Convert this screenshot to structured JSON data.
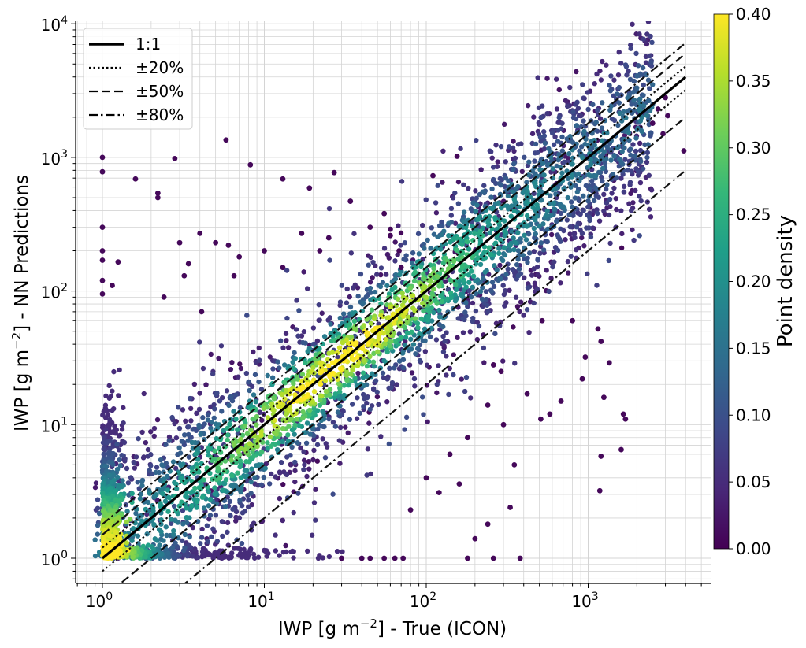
{
  "chart_data": {
    "type": "scatter",
    "title": "",
    "xlabel": "IWP [g m⁻²] - True (ICON)",
    "ylabel": "IWP [g m⁻²] - NN Predictions",
    "x_scale": "log",
    "y_scale": "log",
    "xlim": [
      0.7,
      5500
    ],
    "ylim": [
      0.7,
      11000
    ],
    "grid": true,
    "xticks": [
      {
        "value": 1,
        "base": "10",
        "exp": "0"
      },
      {
        "value": 10,
        "base": "10",
        "exp": "1"
      },
      {
        "value": 100,
        "base": "10",
        "exp": "2"
      },
      {
        "value": 1000,
        "base": "10",
        "exp": "3"
      }
    ],
    "yticks": [
      {
        "value": 1,
        "base": "10",
        "exp": "0"
      },
      {
        "value": 10,
        "base": "10",
        "exp": "1"
      },
      {
        "value": 100,
        "base": "10",
        "exp": "2"
      },
      {
        "value": 1000,
        "base": "10",
        "exp": "3"
      },
      {
        "value": 10000,
        "base": "10",
        "exp": "4"
      }
    ],
    "legend": {
      "position": "top-left",
      "entries": [
        {
          "label": "1:1",
          "style": "solid",
          "factor": 1.0
        },
        {
          "label": "±20%",
          "style": "dotted",
          "factors": [
            1.2,
            0.8
          ]
        },
        {
          "label": "±50%",
          "style": "dashed",
          "factors": [
            1.5,
            0.5
          ]
        },
        {
          "label": "±80%",
          "style": "dashdot",
          "factors": [
            1.8,
            0.2
          ]
        }
      ]
    },
    "reference_lines_x_range": [
      1,
      4000
    ],
    "colorbar": {
      "label": "Point density",
      "min": 0.0,
      "max": 0.4,
      "ticks": [
        "0.00",
        "0.05",
        "0.10",
        "0.15",
        "0.20",
        "0.25",
        "0.30",
        "0.35",
        "0.40"
      ],
      "colormap": "viridis",
      "colors": [
        "#440154",
        "#482878",
        "#3e4989",
        "#31688e",
        "#26828e",
        "#1f9e89",
        "#35b779",
        "#6ece58",
        "#b5de2b",
        "#fde725"
      ]
    },
    "outlier_points": [
      [
        1,
        1000
      ],
      [
        1,
        780
      ],
      [
        1,
        300
      ],
      [
        1,
        200
      ],
      [
        1,
        170
      ],
      [
        1,
        120
      ],
      [
        1,
        95
      ],
      [
        1.15,
        110
      ],
      [
        1.25,
        165
      ],
      [
        1.6,
        690
      ],
      [
        2.2,
        540
      ],
      [
        2.2,
        500
      ],
      [
        2.8,
        980
      ],
      [
        3.4,
        160
      ],
      [
        5.8,
        1350
      ],
      [
        8.2,
        880
      ],
      [
        13,
        690
      ],
      [
        19,
        590
      ],
      [
        27,
        770
      ],
      [
        34,
        470
      ],
      [
        110,
        730
      ],
      [
        155,
        1020
      ],
      [
        520,
        60
      ],
      [
        800,
        60
      ],
      [
        1150,
        52
      ],
      [
        1200,
        42
      ],
      [
        1250,
        16
      ],
      [
        1350,
        29
      ],
      [
        1650,
        12
      ],
      [
        1700,
        11
      ],
      [
        1600,
        6.5
      ],
      [
        1200,
        5.8
      ],
      [
        1180,
        3.2
      ],
      [
        920,
        22
      ],
      [
        960,
        32
      ],
      [
        680,
        15
      ],
      [
        580,
        12
      ],
      [
        510,
        11
      ],
      [
        420,
        17
      ],
      [
        350,
        5
      ],
      [
        330,
        2.4
      ],
      [
        240,
        1.8
      ],
      [
        200,
        1.4
      ],
      [
        180,
        8
      ],
      [
        260,
        1
      ],
      [
        380,
        1
      ],
      [
        180,
        1
      ],
      [
        64,
        1
      ],
      [
        72,
        1
      ],
      [
        55,
        1
      ],
      [
        45,
        1
      ],
      [
        40,
        1
      ],
      [
        30,
        1
      ],
      [
        3100,
        2050
      ],
      [
        2500,
        1800
      ],
      [
        2700,
        2300
      ],
      [
        3900,
        1120
      ],
      [
        2900,
        1500
      ],
      [
        3000,
        2800
      ],
      [
        45,
        300
      ],
      [
        55,
        380
      ],
      [
        60,
        290
      ],
      [
        68,
        200
      ],
      [
        60,
        260
      ],
      [
        70,
        150
      ],
      [
        3,
        230
      ],
      [
        4,
        270
      ],
      [
        5,
        230
      ],
      [
        6,
        220
      ],
      [
        10,
        200
      ],
      [
        7,
        180
      ],
      [
        22,
        200
      ],
      [
        25,
        250
      ],
      [
        17,
        270
      ],
      [
        13,
        150
      ],
      [
        3.2,
        130
      ],
      [
        4.1,
        70
      ],
      [
        2.4,
        90
      ],
      [
        6.5,
        130
      ],
      [
        100,
        4
      ],
      [
        120,
        3.1
      ],
      [
        80,
        2.3
      ],
      [
        140,
        6
      ],
      [
        160,
        3.6
      ],
      [
        300,
        10
      ],
      [
        260,
        28
      ],
      [
        290,
        25
      ],
      [
        240,
        14
      ]
    ]
  }
}
